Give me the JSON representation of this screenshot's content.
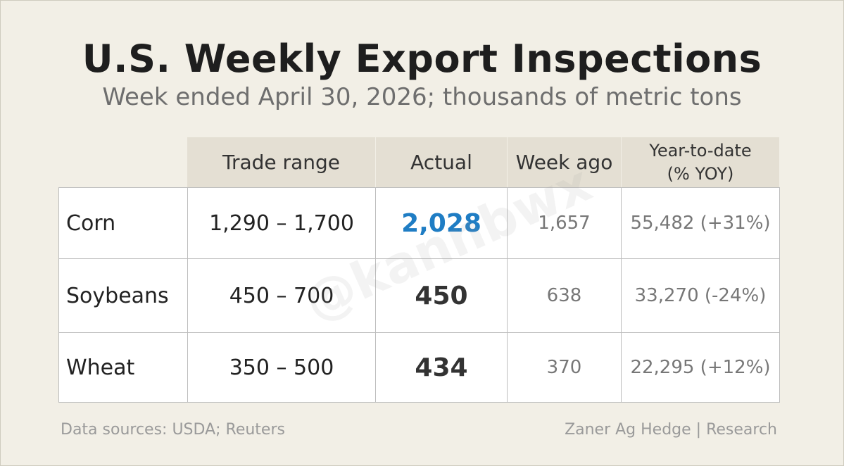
{
  "title": "U.S. Weekly Export Inspections",
  "subtitle": "Week ended April 30, 2026; thousands of metric tons",
  "watermark": "@kannbwx",
  "columns": [
    "",
    "Trade range",
    "Actual",
    "Week ago",
    "Year-to-date\n(% YOY)"
  ],
  "colors": {
    "highlight": "#1f7dc4",
    "header_bg": "#e4dfd3",
    "page_bg": "#f2efe6"
  },
  "chart_data": {
    "type": "table",
    "title": "U.S. Weekly Export Inspections",
    "subtitle": "Week ended April 30, 2026; thousands of metric tons",
    "columns": [
      "",
      "Trade range",
      "Actual",
      "Week ago",
      "Year-to-date\n(% YOY)"
    ],
    "rows": [
      {
        "commodity": "Corn",
        "trade_range": "1,290 – 1,700",
        "actual": "2,028",
        "week_ago": "1,657",
        "ytd": "55,482 (+31%)",
        "highlight": true
      },
      {
        "commodity": "Soybeans",
        "trade_range": "450 – 700",
        "actual": "450",
        "week_ago": "638",
        "ytd": "33,270 (-24%)",
        "highlight": false
      },
      {
        "commodity": "Wheat",
        "trade_range": "350 – 500",
        "actual": "434",
        "week_ago": "370",
        "ytd": "22,295 (+12%)",
        "highlight": false
      }
    ]
  },
  "footer": {
    "sources": "Data sources: USDA; Reuters",
    "credit": "Zaner Ag Hedge | Research"
  }
}
